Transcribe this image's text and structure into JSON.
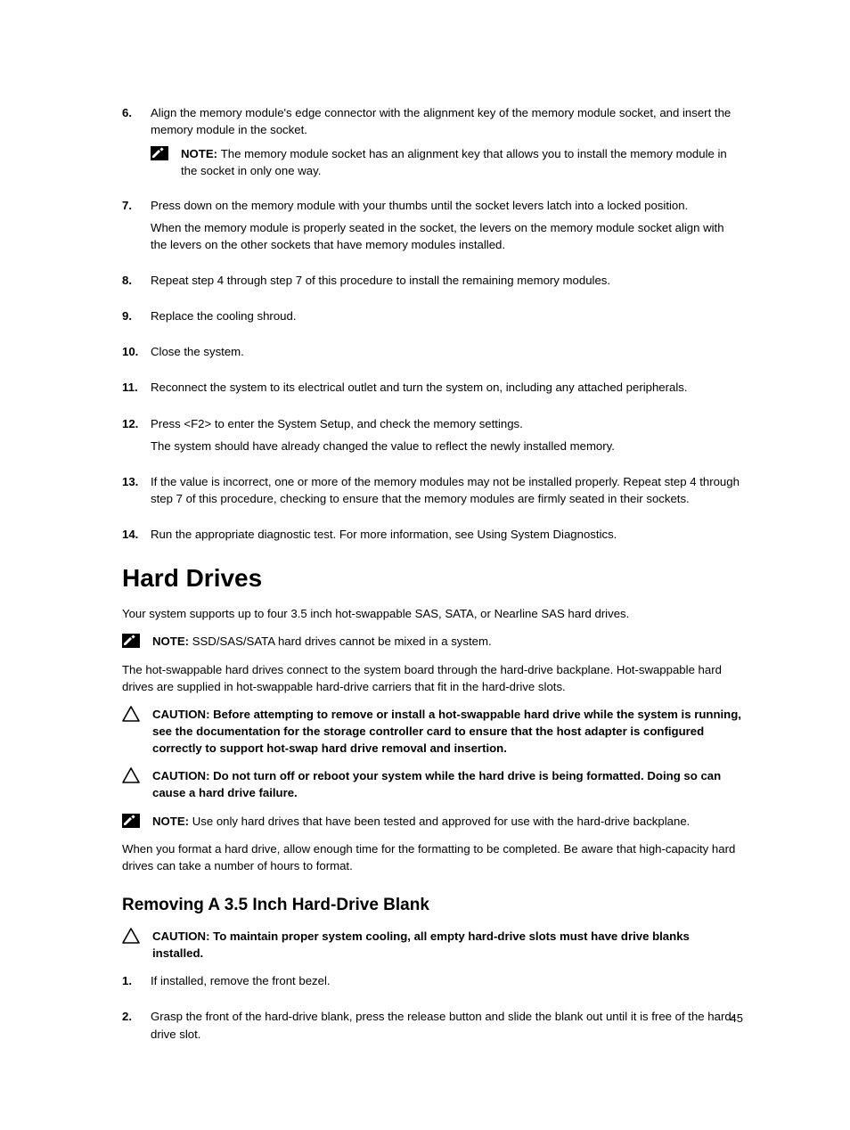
{
  "top_steps": [
    {
      "num": "6.",
      "paras": [
        "Align the memory module's edge connector with the alignment key of the memory module socket, and insert the memory module in the socket."
      ],
      "note": {
        "label": "NOTE: ",
        "text": "The memory module socket has an alignment key that allows you to install the memory module in the socket in only one way."
      }
    },
    {
      "num": "7.",
      "paras": [
        "Press down on the memory module with your thumbs until the socket levers latch into a locked position.",
        "When the memory module is properly seated in the socket, the levers on the memory module socket align with the levers on the other sockets that have memory modules installed."
      ]
    },
    {
      "num": "8.",
      "paras": [
        "Repeat step 4 through step 7 of this procedure to install the remaining memory modules."
      ]
    },
    {
      "num": "9.",
      "paras": [
        "Replace the cooling shroud."
      ]
    },
    {
      "num": "10.",
      "paras": [
        "Close the system."
      ]
    },
    {
      "num": "11.",
      "paras": [
        "Reconnect the system to its electrical outlet and turn the system on, including any attached peripherals."
      ]
    },
    {
      "num": "12.",
      "paras": [
        "Press <F2> to enter the System Setup, and check the memory settings.",
        "The system should have already changed the value to reflect the newly installed memory."
      ]
    },
    {
      "num": "13.",
      "paras": [
        "If the value is incorrect, one or more of the memory modules may not be installed properly. Repeat step 4 through step 7 of this procedure, checking to ensure that the memory modules are firmly seated in their sockets."
      ]
    },
    {
      "num": "14.",
      "paras": [
        "Run the appropriate diagnostic test. For more information, see Using System Diagnostics."
      ]
    }
  ],
  "section_title": "Hard Drives",
  "hd_intro": "Your system supports up to four 3.5 inch hot-swappable SAS, SATA, or Nearline SAS hard drives.",
  "hd_note1": {
    "label": "NOTE: ",
    "text": "SSD/SAS/SATA hard drives cannot be mixed in a system."
  },
  "hd_para2": "The hot-swappable hard drives connect to the system board through the hard-drive backplane. Hot-swappable hard drives are supplied in hot-swappable hard-drive carriers that fit in the hard-drive slots.",
  "hd_caution1": {
    "label": "CAUTION: ",
    "text": "Before attempting to remove or install a hot-swappable hard drive while the system is running, see the documentation for the storage controller card to ensure that the host adapter is configured correctly to support hot-swap hard drive removal and insertion."
  },
  "hd_caution2": {
    "label": "CAUTION: ",
    "text": "Do not turn off or reboot your system while the hard drive is being formatted. Doing so can cause a hard drive failure."
  },
  "hd_note2": {
    "label": "NOTE: ",
    "text": "Use only hard drives that have been tested and approved for use with the hard-drive backplane."
  },
  "hd_para3": "When you format a hard drive, allow enough time for the formatting to be completed. Be aware that high-capacity hard drives can take a number of hours to format.",
  "subsection_title": "Removing A 3.5 Inch Hard-Drive Blank",
  "sub_caution": {
    "label": "CAUTION: ",
    "text": "To maintain proper system cooling, all empty hard-drive slots must have drive blanks installed."
  },
  "sub_steps": [
    {
      "num": "1.",
      "paras": [
        "If installed, remove the front bezel."
      ]
    },
    {
      "num": "2.",
      "paras": [
        "Grasp the front of the hard-drive blank, press the release button and slide the blank out until it is free of the hard-drive slot."
      ]
    }
  ],
  "page_number": "45"
}
